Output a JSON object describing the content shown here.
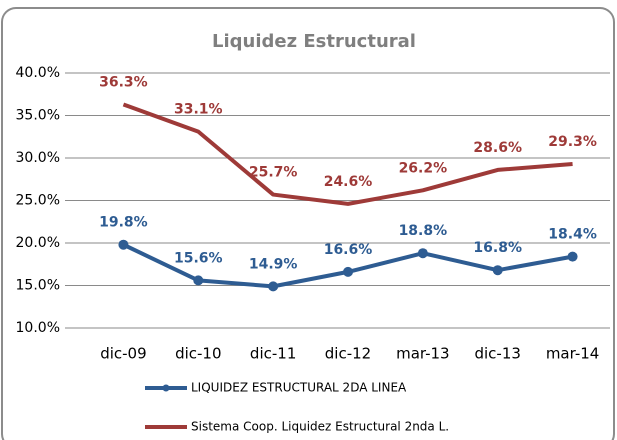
{
  "chart_data": {
    "type": "line",
    "title": "Liquidez Estructural",
    "categories": [
      "dic-09",
      "dic-10",
      "dic-11",
      "dic-12",
      "mar-13",
      "dic-13",
      "mar-14"
    ],
    "series": [
      {
        "name": "LIQUIDEZ ESTRUCTURAL 2DA LINEA",
        "color": "#2e5c92",
        "values": [
          19.8,
          15.6,
          14.9,
          16.6,
          18.8,
          16.8,
          18.4
        ],
        "value_labels": [
          "19.8%",
          "15.6%",
          "14.9%",
          "16.6%",
          "18.8%",
          "16.8%",
          "18.4%"
        ]
      },
      {
        "name": "Sistema Coop. Liquidez Estructural 2nda L.",
        "color": "#9e3a38",
        "values": [
          36.3,
          33.1,
          25.7,
          24.6,
          26.2,
          28.6,
          29.3
        ],
        "value_labels": [
          "36.3%",
          "33.1%",
          "25.7%",
          "24.6%",
          "26.2%",
          "28.6%",
          "29.3%"
        ]
      }
    ],
    "ylim": [
      10,
      40
    ],
    "yticks": [
      {
        "value": 10,
        "label": "10.0%"
      },
      {
        "value": 15,
        "label": "15.0%"
      },
      {
        "value": 20,
        "label": "20.0%"
      },
      {
        "value": 25,
        "label": "25.0%"
      },
      {
        "value": 30,
        "label": "30.0%"
      },
      {
        "value": 35,
        "label": "35.0%"
      },
      {
        "value": 40,
        "label": "40.0%"
      }
    ],
    "grid": true
  }
}
